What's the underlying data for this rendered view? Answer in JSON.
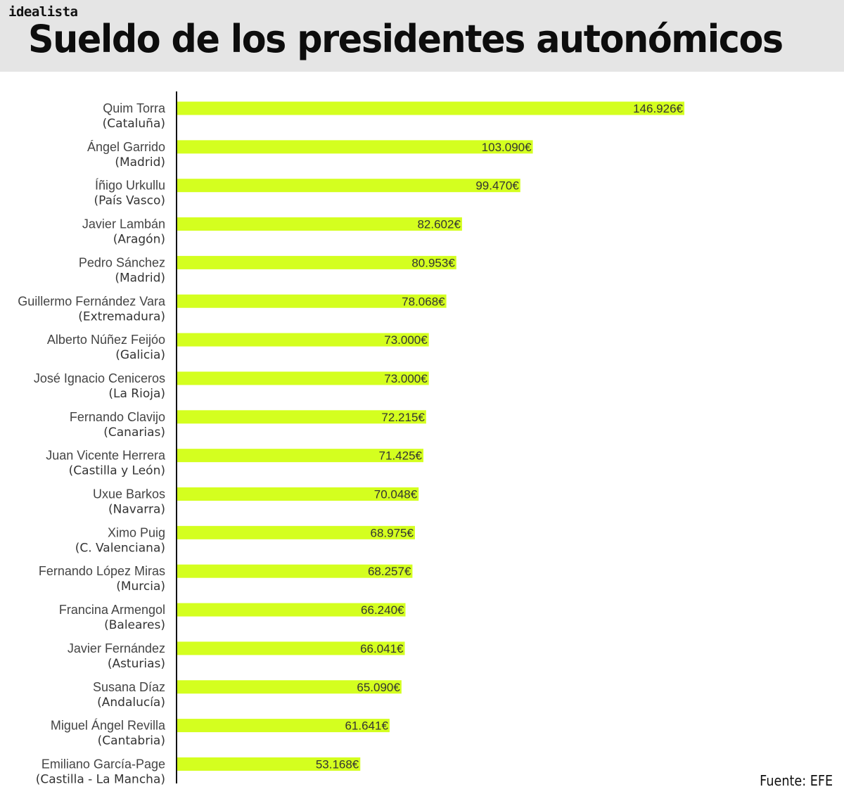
{
  "header": {
    "brand": "idealista",
    "title": "Sueldo de los presidentes autonómicos"
  },
  "source": "Fuente: EFE",
  "chart_data": {
    "type": "bar",
    "orientation": "horizontal",
    "bar_color": "#d4ff1f",
    "categories": [
      {
        "name": "Quim Torra",
        "region": "(Cataluña)"
      },
      {
        "name": "Ángel Garrido",
        "region": "(Madrid)"
      },
      {
        "name": "Íñigo Urkullu",
        "region": "(País Vasco)"
      },
      {
        "name": "Javier Lambán",
        "region": "(Aragón)"
      },
      {
        "name": "Pedro Sánchez",
        "region": "(Madrid)"
      },
      {
        "name": "Guillermo Fernández Vara",
        "region": "(Extremadura)"
      },
      {
        "name": "Alberto Núñez Feijóo",
        "region": "(Galicia)"
      },
      {
        "name": "José Ignacio Ceniceros",
        "region": "(La Rioja)"
      },
      {
        "name": "Fernando Clavijo",
        "region": "(Canarias)"
      },
      {
        "name": "Juan Vicente Herrera",
        "region": "(Castilla y León)"
      },
      {
        "name": "Uxue Barkos",
        "region": "(Navarra)"
      },
      {
        "name": "Ximo Puig",
        "region": "(C. Valenciana)"
      },
      {
        "name": "Fernando López Miras",
        "region": "(Murcia)"
      },
      {
        "name": "Francina Armengol",
        "region": "(Baleares)"
      },
      {
        "name": "Javier Fernández",
        "region": "(Asturias)"
      },
      {
        "name": "Susana Díaz",
        "region": "(Andalucía)"
      },
      {
        "name": "Miguel Ángel Revilla",
        "region": "(Cantabria)"
      },
      {
        "name": "Emiliano García-Page",
        "region": "(Castilla - La Mancha)"
      }
    ],
    "values": [
      146926,
      103090,
      99470,
      82602,
      80953,
      78068,
      73000,
      73000,
      72215,
      71425,
      70048,
      68975,
      68257,
      66240,
      66041,
      65090,
      61641,
      53168
    ],
    "value_labels": [
      "146.926€",
      "103.090€",
      "99.470€",
      "82.602€",
      "80.953€",
      "78.068€",
      "73.000€",
      "73.000€",
      "72.215€",
      "71.425€",
      "70.048€",
      "68.975€",
      "68.257€",
      "66.240€",
      "66.041€",
      "65.090€",
      "61.641€",
      "53.168€"
    ],
    "xlim": [
      0,
      146926
    ],
    "grid": false,
    "legend": "none"
  }
}
